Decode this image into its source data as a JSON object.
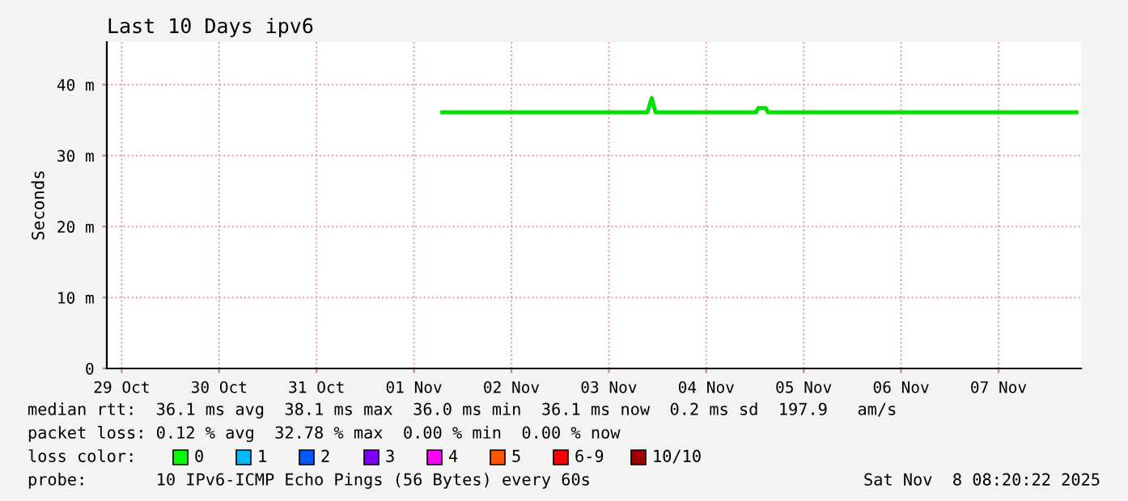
{
  "chart_data": {
    "type": "line",
    "title": "Last 10 Days ipv6",
    "ylabel": "Seconds",
    "xlim": [
      "2025-10-29T08:20",
      "2025-11-08T08:20"
    ],
    "xticks": [
      {
        "value": "2025-10-29T12:00",
        "label": "29 Oct"
      },
      {
        "value": "2025-10-30T12:00",
        "label": "30 Oct"
      },
      {
        "value": "2025-10-31T12:00",
        "label": "31 Oct"
      },
      {
        "value": "2025-11-01T12:00",
        "label": "01 Nov"
      },
      {
        "value": "2025-11-02T12:00",
        "label": "02 Nov"
      },
      {
        "value": "2025-11-03T12:00",
        "label": "03 Nov"
      },
      {
        "value": "2025-11-04T12:00",
        "label": "04 Nov"
      },
      {
        "value": "2025-11-05T12:00",
        "label": "05 Nov"
      },
      {
        "value": "2025-11-06T12:00",
        "label": "06 Nov"
      },
      {
        "value": "2025-11-07T12:00",
        "label": "07 Nov"
      }
    ],
    "ylim": [
      0,
      46
    ],
    "yticks": [
      {
        "value": 0,
        "label": "0"
      },
      {
        "value": 10,
        "label": "10 m"
      },
      {
        "value": 20,
        "label": "20 m"
      },
      {
        "value": 30,
        "label": "30 m"
      },
      {
        "value": 40,
        "label": "40 m"
      }
    ],
    "grid": true,
    "series": [
      {
        "color": "#00e000",
        "x": [
          "2025-11-01T19:00",
          "2025-11-03T21:30",
          "2025-11-03T22:35",
          "2025-11-03T23:30",
          "2025-11-05T00:15",
          "2025-11-05T00:50",
          "2025-11-05T02:40",
          "2025-11-05T03:10",
          "2025-11-08T07:10"
        ],
        "values": [
          36.1,
          36.1,
          38.1,
          36.1,
          36.1,
          36.7,
          36.7,
          36.1,
          36.1
        ]
      }
    ],
    "annotations": [
      "median rtt:  36.1 ms avg  38.1 ms max  36.0 ms min  36.1 ms now  0.2 ms sd  197.9   am/s",
      "packet loss: 0.12 % avg  32.78 % max  0.00 % min  0.00 % now",
      "loss color:",
      "0",
      "1",
      "2",
      "3",
      "4",
      "5",
      "6-9",
      "10/10",
      "probe:       10 IPv6-ICMP Echo Pings (56 Bytes) every 60s",
      "Sat Nov  8 08:20:22 2025"
    ]
  }
}
